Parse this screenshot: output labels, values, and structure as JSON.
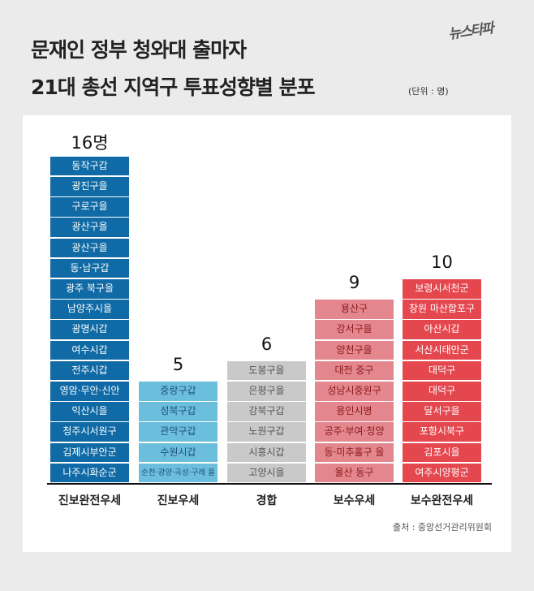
{
  "header": {
    "title_line1": "문재인 정부 청와대 출마자",
    "title_line2": "21대 총선 지역구 투표성향별 분포",
    "unit": "(단위 : 명)",
    "logo": "뉴스타파"
  },
  "source": "출처 : 중앙선거관리위원회",
  "chart_data": {
    "type": "bar",
    "categories": [
      "진보완전우세",
      "진보우세",
      "경합",
      "보수우세",
      "보수완전우세"
    ],
    "values": [
      16,
      5,
      6,
      9,
      10
    ],
    "value_labels": [
      "16명",
      "5",
      "6",
      "9",
      "10"
    ],
    "colors": [
      "#0f6aa5",
      "#6bbfdc",
      "#c9c9c9",
      "#e3868e",
      "#e5474f"
    ],
    "text_colors": [
      "#ffffff",
      "#1f4f7a",
      "#555555",
      "#8b1a1a",
      "#ffffff"
    ],
    "districts": [
      [
        "동작구갑",
        "광진구을",
        "구로구을",
        "광산구을",
        "광산구을",
        "동·남구갑",
        "광주 북구을",
        "남양주시을",
        "광명시갑",
        "여수시갑",
        "전주시갑",
        "영암·무안·신안",
        "익산시을",
        "청주시서원구",
        "김제시부안군",
        "나주시화순군"
      ],
      [
        "중랑구갑",
        "성북구갑",
        "관악구갑",
        "수원시갑",
        "순천·광양·곡성·구례 을"
      ],
      [
        "도봉구을",
        "은평구을",
        "강북구갑",
        "노원구갑",
        "시흥시갑",
        "고양시을"
      ],
      [
        "용산구",
        "강서구을",
        "양천구을",
        "대전 중구",
        "성남시중원구",
        "용인시병",
        "공주·부여·청양",
        "동·미추홀구 을",
        "울산 동구"
      ],
      [
        "보령시서천군",
        "창원 마산합포구",
        "아산시갑",
        "서산시태안군",
        "대덕구",
        "대덕구",
        "달서구을",
        "포항시북구",
        "김포시을",
        "여주시양평군"
      ]
    ]
  }
}
